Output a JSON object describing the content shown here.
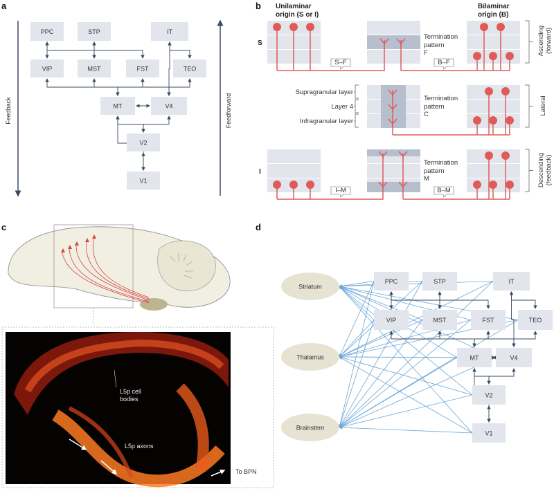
{
  "colors": {
    "box": "#e2e5ec",
    "box_dark": "#b7bfce",
    "arrow": "#3b4a63",
    "red": "#e15a5a",
    "blue": "#6aa6d6",
    "ellipse": "#e6e3d2"
  },
  "panel_a": {
    "letter": "a",
    "left_axis": "Feedback",
    "right_axis": "Feedforward",
    "areas": [
      "PPC",
      "STP",
      "IT",
      "VIP",
      "MST",
      "FST",
      "TEO",
      "MT",
      "V4",
      "V2",
      "V1"
    ]
  },
  "panel_b": {
    "letter": "b",
    "unilaminar": "Unilaminar origin (S or I)",
    "unilaminar_l1": "Unilaminar",
    "unilaminar_l2": "origin (S or I)",
    "bilaminar_l1": "Bilaminar",
    "bilaminar_l2": "origin (B)",
    "row_s": "S",
    "row_i": "I",
    "term_f": [
      "Termination",
      "pattern",
      "F"
    ],
    "term_c": [
      "Termination",
      "pattern",
      "C"
    ],
    "term_m": [
      "Termination",
      "pattern",
      "M"
    ],
    "tags": {
      "sf": "S–F",
      "bf": "B–F",
      "im": "I–M",
      "bm": "B–M"
    },
    "layers": {
      "supra": "Supragranular layer",
      "l4": "Layer 4",
      "infra": "Infragranular layer"
    },
    "side": {
      "ascending": "Ascending",
      "ascending_sub": "(forward)",
      "lateral": "Lateral",
      "descending": "Descending",
      "descending_sub": "(feedback)"
    }
  },
  "panel_c": {
    "letter": "c",
    "cell_bodies_l1": "L5p cell",
    "cell_bodies_l2": "bodies",
    "axons": "L5p axons",
    "to_bpn": "To BPN"
  },
  "panel_d": {
    "letter": "d",
    "nuclei": [
      "Striatum",
      "Thalamus",
      "Brainstem"
    ],
    "areas": [
      "PPC",
      "STP",
      "IT",
      "VIP",
      "MST",
      "FST",
      "TEO",
      "MT",
      "V4",
      "V2",
      "V1"
    ]
  }
}
